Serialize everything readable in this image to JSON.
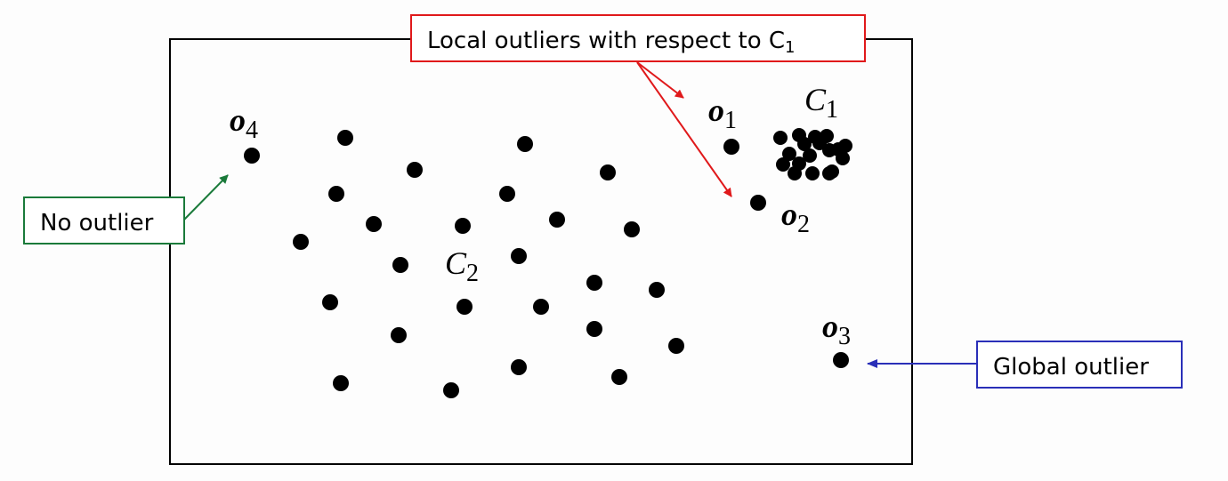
{
  "labels": {
    "local_callout": {
      "text": "Local outliers with respect to C",
      "subscript": "1",
      "color": "#e0191b"
    },
    "no_outlier_callout": {
      "text": "No outlier",
      "color": "#1a7a3a"
    },
    "global_callout": {
      "text": "Global outlier",
      "color": "#2a2fb8"
    }
  },
  "points": {
    "o1": {
      "base": "o",
      "sub": "1"
    },
    "o2": {
      "base": "o",
      "sub": "2"
    },
    "o3": {
      "base": "o",
      "sub": "3"
    },
    "o4": {
      "base": "o",
      "sub": "4"
    }
  },
  "clusters": {
    "c1": {
      "base": "C",
      "sub": "1"
    },
    "c2": {
      "base": "C",
      "sub": "2"
    }
  },
  "colors": {
    "point": "#000000",
    "frame": "#000000"
  }
}
